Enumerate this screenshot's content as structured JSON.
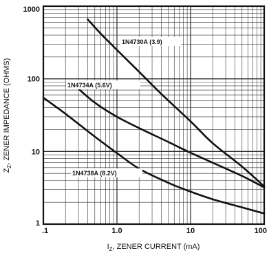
{
  "chart_data": {
    "type": "line",
    "x_scale": "log",
    "y_scale": "log",
    "xlim": [
      0.1,
      100
    ],
    "ylim": [
      1,
      1000
    ],
    "xlabel": "I",
    "xlabel_sub": "Z",
    "xlabel_rest": ", ZENER CURRENT (mA)",
    "ylabel": "Z",
    "ylabel_sub": "Z",
    "ylabel_rest": ", ZENER IMPEDANCE (OHMS)",
    "x_ticks": [
      0.1,
      1.0,
      10,
      100
    ],
    "x_tick_labels": [
      ".1",
      "1.0",
      "10",
      "100"
    ],
    "y_ticks": [
      1,
      10,
      100,
      1000
    ],
    "y_tick_labels": [
      "1",
      "10",
      "100",
      "1000"
    ],
    "grid": true,
    "series": [
      {
        "name": "1N4730A (3.9)",
        "x": [
          0.4,
          0.6,
          1,
          2,
          4,
          10,
          20,
          50,
          100
        ],
        "y": [
          660,
          420,
          250,
          125,
          62,
          26,
          13,
          6.2,
          3.3
        ]
      },
      {
        "name": "1N4734A (5.6V)",
        "x": [
          0.3,
          0.5,
          1,
          2,
          5,
          10,
          20,
          50,
          100
        ],
        "y": [
          73,
          47,
          30,
          21,
          13.5,
          9.6,
          7,
          4.6,
          3.2
        ]
      },
      {
        "name": "1N4738A (8.2V)",
        "x": [
          0.1,
          0.2,
          0.5,
          1,
          2,
          5,
          10,
          20,
          50,
          100
        ],
        "y": [
          55,
          33,
          16,
          9.5,
          5.8,
          3.7,
          2.8,
          2.2,
          1.7,
          1.4
        ]
      }
    ]
  }
}
